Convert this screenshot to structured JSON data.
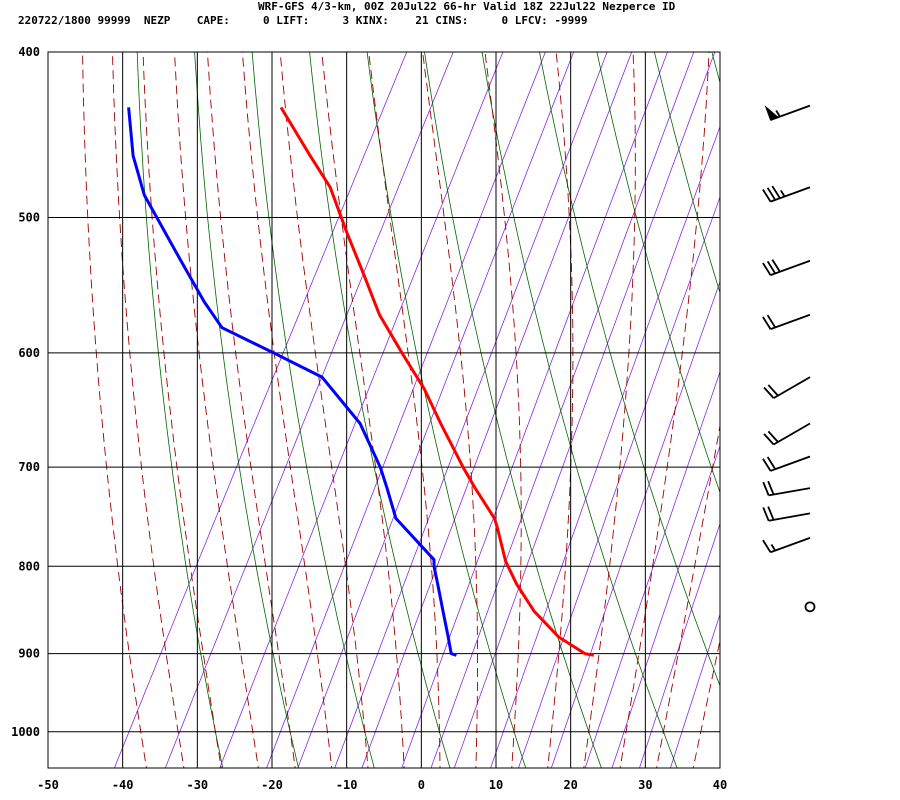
{
  "header": {
    "line1": "WRF-GFS 4/3-km, 00Z 20Jul22 66-hr Valid 18Z 22Jul22 Nezperce ID",
    "line2": "220722/1800 99999  NEZP    CAPE:     0 LIFT:     3 KINX:    21 CINS:     0 LFCV: -9999"
  },
  "chart_data": {
    "type": "line",
    "title": "WRF-GFS 4/3-km, 00Z 20Jul22 66-hr Valid 18Z 22Jul22 Nezperce ID",
    "xlabel": "",
    "ylabel": "",
    "x_ticks": [
      "-50",
      "-40",
      "-30",
      "-20",
      "-10",
      "0",
      "10",
      "20",
      "30",
      "40"
    ],
    "y_ticks": [
      {
        "p": 400,
        "label": "400"
      },
      {
        "p": 500,
        "label": "500"
      },
      {
        "p": 600,
        "label": "600"
      },
      {
        "p": 700,
        "label": "700"
      },
      {
        "p": 800,
        "label": "800"
      },
      {
        "p": 900,
        "label": "900"
      },
      {
        "p": 1000,
        "label": "1000"
      }
    ],
    "pressure_range": [
      400,
      1050
    ],
    "temperature_range": [
      -50,
      40
    ],
    "grid": true,
    "background_lines": {
      "dry_adiabats_color": "#006400",
      "moist_adiabats_color": "#a00000",
      "mixing_ratio_color": "#8a2be2"
    },
    "series": [
      {
        "color": "#ff0000",
        "points": [
          {
            "p": 902,
            "t": 23.1
          },
          {
            "p": 900,
            "t": 21.9
          },
          {
            "p": 880,
            "t": 18.4
          },
          {
            "p": 850,
            "t": 15.1
          },
          {
            "p": 820,
            "t": 12.8
          },
          {
            "p": 795,
            "t": 11.3
          },
          {
            "p": 760,
            "t": 10.2
          },
          {
            "p": 750,
            "t": 9.8
          },
          {
            "p": 720,
            "t": 7.2
          },
          {
            "p": 700,
            "t": 5.6
          },
          {
            "p": 660,
            "t": 2.6
          },
          {
            "p": 630,
            "t": 0.4
          },
          {
            "p": 600,
            "t": -2.6
          },
          {
            "p": 570,
            "t": -5.6
          },
          {
            "p": 540,
            "t": -7.7
          },
          {
            "p": 510,
            "t": -10.0
          },
          {
            "p": 480,
            "t": -12.2
          },
          {
            "p": 460,
            "t": -14.9
          },
          {
            "p": 431,
            "t": -18.8
          }
        ]
      },
      {
        "color": "#0000ff",
        "points": [
          {
            "p": 902,
            "t": 4.7
          },
          {
            "p": 900,
            "t": 4.0
          },
          {
            "p": 880,
            "t": 3.6
          },
          {
            "p": 850,
            "t": 2.9
          },
          {
            "p": 820,
            "t": 2.2
          },
          {
            "p": 800,
            "t": 1.7
          },
          {
            "p": 793,
            "t": 1.7
          },
          {
            "p": 770,
            "t": -1.0
          },
          {
            "p": 750,
            "t": -3.4
          },
          {
            "p": 720,
            "t": -4.6
          },
          {
            "p": 700,
            "t": -5.5
          },
          {
            "p": 660,
            "t": -8.2
          },
          {
            "p": 620,
            "t": -13.3
          },
          {
            "p": 600,
            "t": -19.8
          },
          {
            "p": 580,
            "t": -26.7
          },
          {
            "p": 560,
            "t": -29.1
          },
          {
            "p": 530,
            "t": -32.2
          },
          {
            "p": 485,
            "t": -37.1
          },
          {
            "p": 460,
            "t": -38.6
          },
          {
            "p": 431,
            "t": -39.2
          }
        ]
      }
    ],
    "wind_barbs": [
      {
        "p": 430,
        "dir": 250,
        "speed": 55
      },
      {
        "p": 480,
        "dir": 250,
        "speed": 35
      },
      {
        "p": 530,
        "dir": 250,
        "speed": 30
      },
      {
        "p": 570,
        "dir": 250,
        "speed": 20
      },
      {
        "p": 620,
        "dir": 240,
        "speed": 20
      },
      {
        "p": 660,
        "dir": 240,
        "speed": 20
      },
      {
        "p": 690,
        "dir": 250,
        "speed": 20
      },
      {
        "p": 720,
        "dir": 260,
        "speed": 20
      },
      {
        "p": 745,
        "dir": 260,
        "speed": 20
      },
      {
        "p": 770,
        "dir": 250,
        "speed": 15
      },
      {
        "p": 845,
        "dir": 0,
        "speed": 0
      }
    ]
  }
}
